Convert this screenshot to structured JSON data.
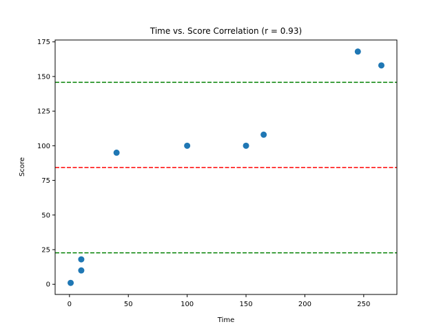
{
  "chart_data": {
    "type": "scatter",
    "title": "Time vs. Score Correlation (r = 0.93)",
    "xlabel": "Time",
    "ylabel": "Score",
    "xlim": [
      -12.2,
      278.2
    ],
    "ylim": [
      -7.35,
      176.35
    ],
    "xticks": [
      0,
      50,
      100,
      150,
      200,
      250
    ],
    "yticks": [
      0,
      25,
      50,
      75,
      100,
      125,
      150,
      175
    ],
    "grid": false,
    "series": [
      {
        "color": "#1f77b4",
        "points": [
          {
            "x": 1,
            "y": 1
          },
          {
            "x": 10,
            "y": 10
          },
          {
            "x": 10,
            "y": 18
          },
          {
            "x": 40,
            "y": 95
          },
          {
            "x": 100,
            "y": 100
          },
          {
            "x": 150,
            "y": 100
          },
          {
            "x": 165,
            "y": 108
          },
          {
            "x": 245,
            "y": 168
          },
          {
            "x": 265,
            "y": 158
          }
        ]
      }
    ],
    "reference_lines": [
      {
        "y": 84.3,
        "color": "#ff0000",
        "style": "dashed"
      },
      {
        "y": 145.8,
        "color": "#008000",
        "style": "dashed"
      },
      {
        "y": 22.7,
        "color": "#008000",
        "style": "dashed"
      }
    ]
  }
}
